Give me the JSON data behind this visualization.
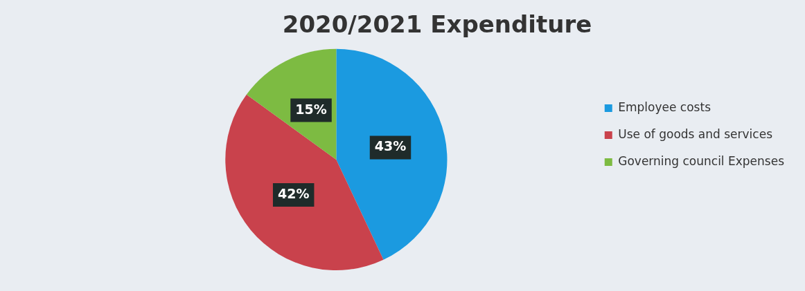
{
  "chart_data": {
    "type": "pie",
    "title": "2020/2021 Expenditure",
    "categories": [
      "Employee costs",
      "Use of goods and services",
      "Governing council Expenses"
    ],
    "values": [
      43,
      42,
      15
    ],
    "colors": [
      "#1b9ae0",
      "#c9424c",
      "#7dbb42"
    ],
    "value_labels": [
      "43%",
      "42%",
      "15%"
    ],
    "legend": "right"
  }
}
